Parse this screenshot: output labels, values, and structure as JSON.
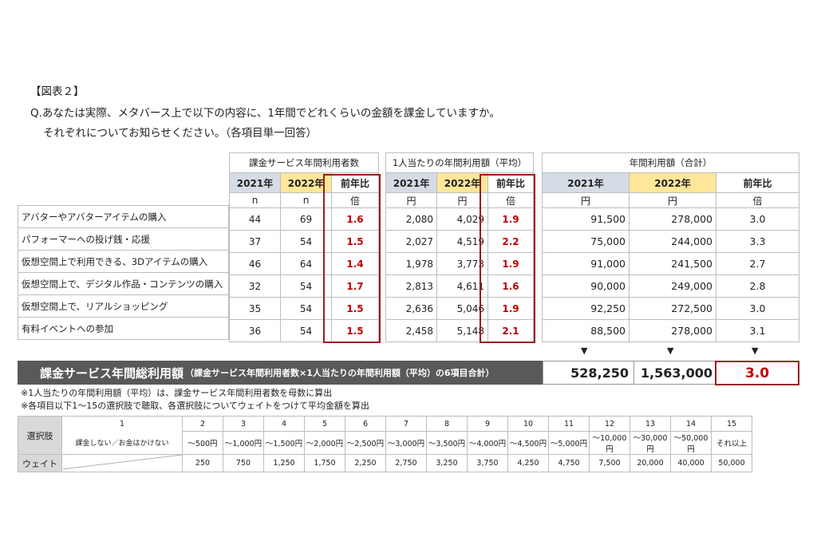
{
  "header": {
    "figure_label": "【図表２】",
    "question_line1": "Q.あなたは実際、メタバース上で以下の内容に、1年間でどれくらいの金額を課金していますか。",
    "question_line2": "それぞれについてお知らせください。（各項目単一回答）"
  },
  "groups": {
    "users": "課金サービス年間利用者数",
    "per_person": "1人当たりの年間利用額（平均）",
    "annual": "年間利用額（合計）"
  },
  "cols": {
    "y2021": "2021年",
    "y2022": "2022年",
    "ratio": "前年比"
  },
  "units": {
    "n": "n",
    "yen": "円",
    "times": "倍"
  },
  "rows": [
    {
      "label": "アバターやアバターアイテムの購入",
      "u21": "44",
      "u22": "69",
      "ur": "1.6",
      "p21": "2,080",
      "p22": "4,029",
      "pr": "1.9",
      "a21": "91,500",
      "a22": "278,000",
      "ar": "3.0"
    },
    {
      "label": "パフォーマーへの投げ銭・応援",
      "u21": "37",
      "u22": "54",
      "ur": "1.5",
      "p21": "2,027",
      "p22": "4,519",
      "pr": "2.2",
      "a21": "75,000",
      "a22": "244,000",
      "ar": "3.3"
    },
    {
      "label": "仮想空間上で利用できる、3Dアイテムの購入",
      "u21": "46",
      "u22": "64",
      "ur": "1.4",
      "p21": "1,978",
      "p22": "3,773",
      "pr": "1.9",
      "a21": "91,000",
      "a22": "241,500",
      "ar": "2.7"
    },
    {
      "label": "仮想空間上で、デジタル作品・コンテンツの購入",
      "u21": "32",
      "u22": "54",
      "ur": "1.7",
      "p21": "2,813",
      "p22": "4,611",
      "pr": "1.6",
      "a21": "90,000",
      "a22": "249,000",
      "ar": "2.8"
    },
    {
      "label": "仮想空間上で、リアルショッピング",
      "u21": "35",
      "u22": "54",
      "ur": "1.5",
      "p21": "2,636",
      "p22": "5,046",
      "pr": "1.9",
      "a21": "92,250",
      "a22": "272,500",
      "ar": "3.0"
    },
    {
      "label": "有料イベントへの参加",
      "u21": "36",
      "u22": "54",
      "ur": "1.5",
      "p21": "2,458",
      "p22": "5,148",
      "pr": "2.1",
      "a21": "88,500",
      "a22": "278,000",
      "ar": "3.1"
    }
  ],
  "arrow_glyph": "▼",
  "total": {
    "title": "課金サービス年間総利用額",
    "subtitle": "（課金サービス年間利用者数×1人当たりの年間利用額（平均）の6項目合計）",
    "y2021": "528,250",
    "y2022": "1,563,000",
    "ratio": "3.0"
  },
  "notes": [
    "※1人当たりの年間利用額（平均）は、課金サービス年間利用者数を母数に算出",
    "※各項目以下1～15の選択肢で聴取、各選択肢についてウェイトをつけて平均金額を算出"
  ],
  "legend": {
    "choice_label": "選択肢",
    "weight_label": "ウェイト",
    "numbers": [
      "1",
      "2",
      "3",
      "4",
      "5",
      "6",
      "7",
      "8",
      "9",
      "10",
      "11",
      "12",
      "13",
      "14",
      "15"
    ],
    "choices": [
      "課金しない／お金はかけない",
      "～500円",
      "～1,000円",
      "～1,500円",
      "～2,000円",
      "～2,500円",
      "～3,000円",
      "～3,500円",
      "～4,000円",
      "～4,500円",
      "～5,000円",
      "～10,000円",
      "～30,000円",
      "～50,000円",
      "それ以上"
    ],
    "weights": [
      "",
      "250",
      "750",
      "1,250",
      "1,750",
      "2,250",
      "2,750",
      "3,250",
      "3,750",
      "4,250",
      "4,750",
      "7,500",
      "20,000",
      "40,000",
      "50,000"
    ]
  },
  "colors": {
    "accent_red": "#c00000",
    "col2021": "#d6dce5",
    "col2022": "#ffe699",
    "total_bar": "#595959"
  }
}
